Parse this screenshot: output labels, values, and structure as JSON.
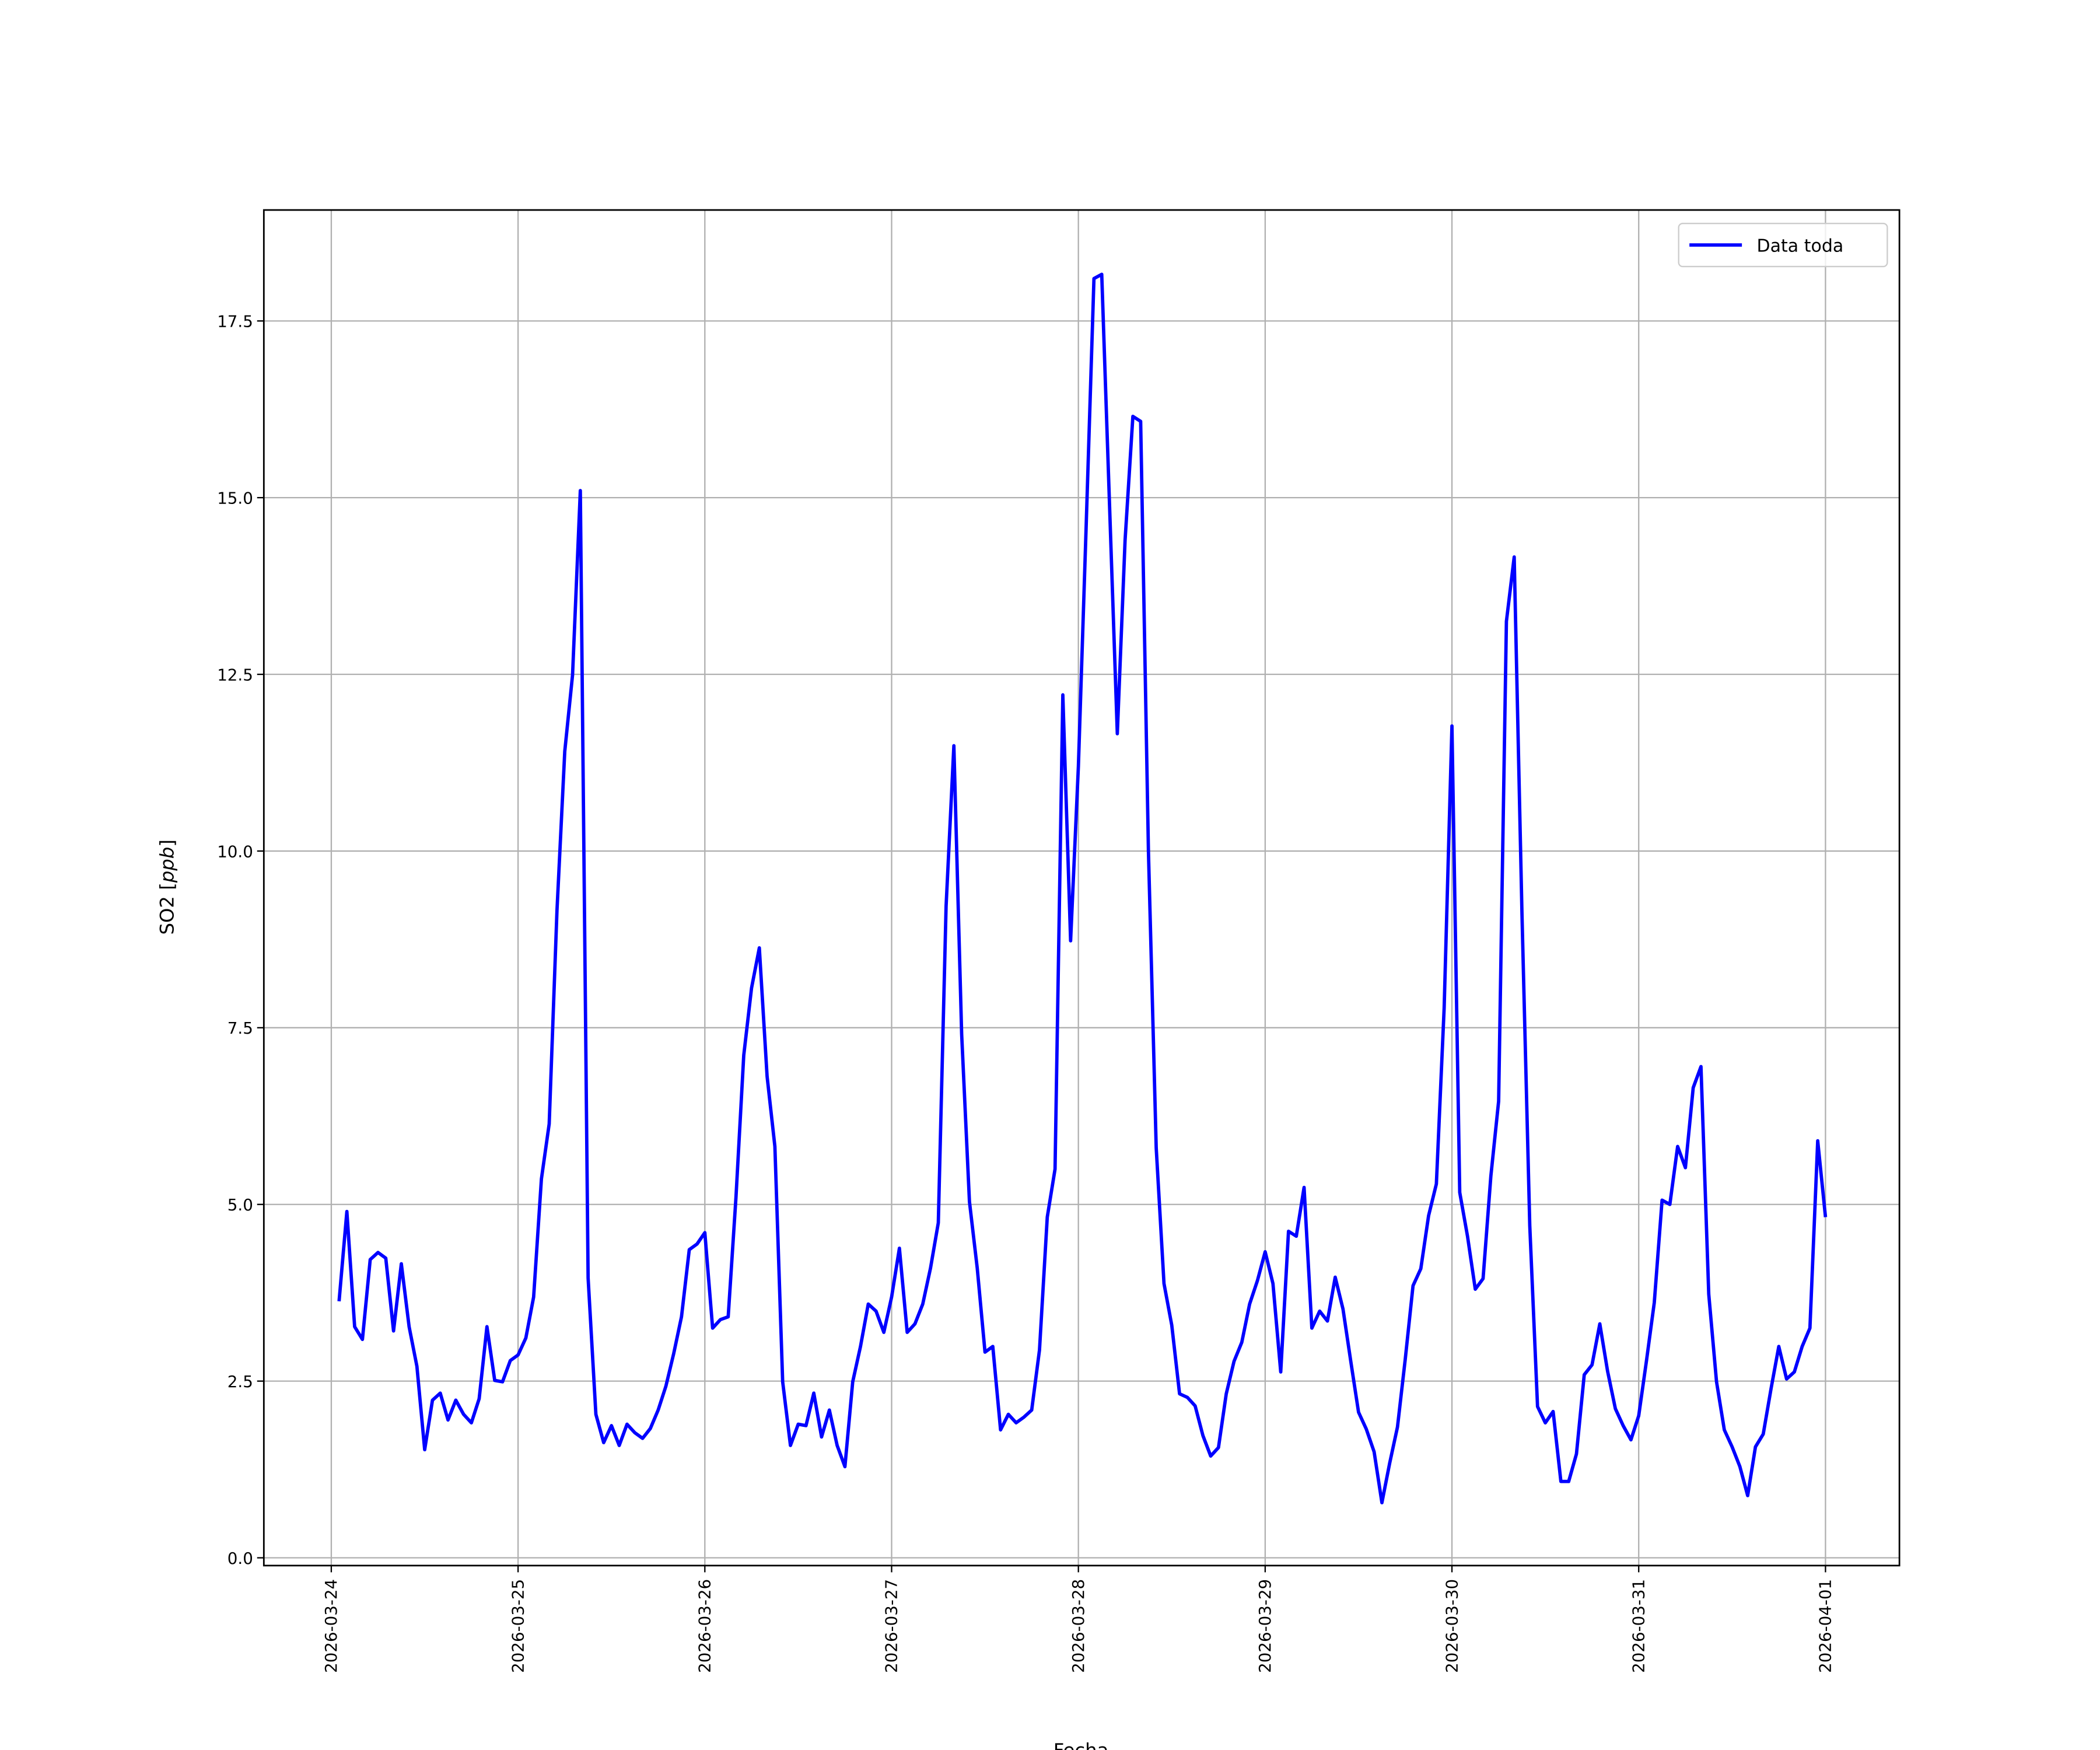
{
  "chart_data": {
    "type": "line",
    "title": "",
    "xlabel": "Fecha",
    "ylabel": "SO2 [ppb]",
    "ylabel_parts": {
      "plain": "SO2 [",
      "italic": "ppb",
      "close": "]"
    },
    "xlim": [
      "2026-03-23T15:20",
      "2026-04-01T09:30"
    ],
    "ylim": [
      -0.11,
      19.07
    ],
    "grid": true,
    "legend_position": "top-right",
    "xticks": [
      "2026-03-24",
      "2026-03-25",
      "2026-03-26",
      "2026-03-27",
      "2026-03-28",
      "2026-03-29",
      "2026-03-30",
      "2026-03-31",
      "2026-04-01"
    ],
    "yticks": [
      "0.0",
      "2.5",
      "5.0",
      "7.5",
      "10.0",
      "12.5",
      "15.0",
      "17.5"
    ],
    "series": [
      {
        "name": "Data toda",
        "color": "#0000ff",
        "x": [
          "2026-03-24T01:00",
          "2026-03-24T02:00",
          "2026-03-24T03:00",
          "2026-03-24T04:00",
          "2026-03-24T05:00",
          "2026-03-24T06:00",
          "2026-03-24T07:00",
          "2026-03-24T08:00",
          "2026-03-24T09:00",
          "2026-03-24T10:00",
          "2026-03-24T11:00",
          "2026-03-24T12:00",
          "2026-03-24T13:00",
          "2026-03-24T14:00",
          "2026-03-24T15:00",
          "2026-03-24T16:00",
          "2026-03-24T17:00",
          "2026-03-24T18:00",
          "2026-03-24T19:00",
          "2026-03-24T20:00",
          "2026-03-24T21:00",
          "2026-03-24T22:00",
          "2026-03-24T23:00",
          "2026-03-25T00:00",
          "2026-03-25T01:00",
          "2026-03-25T02:00",
          "2026-03-25T03:00",
          "2026-03-25T04:00",
          "2026-03-25T05:00",
          "2026-03-25T06:00",
          "2026-03-25T07:00",
          "2026-03-25T08:00",
          "2026-03-25T09:00",
          "2026-03-25T10:00",
          "2026-03-25T11:00",
          "2026-03-25T12:00",
          "2026-03-25T13:00",
          "2026-03-25T14:00",
          "2026-03-25T15:00",
          "2026-03-25T16:00",
          "2026-03-25T17:00",
          "2026-03-25T18:00",
          "2026-03-25T19:00",
          "2026-03-25T20:00",
          "2026-03-25T21:00",
          "2026-03-25T22:00",
          "2026-03-25T23:00",
          "2026-03-26T00:00",
          "2026-03-26T01:00",
          "2026-03-26T02:00",
          "2026-03-26T03:00",
          "2026-03-26T04:00",
          "2026-03-26T05:00",
          "2026-03-26T06:00",
          "2026-03-26T07:00",
          "2026-03-26T08:00",
          "2026-03-26T09:00",
          "2026-03-26T10:00",
          "2026-03-26T11:00",
          "2026-03-26T12:00",
          "2026-03-26T13:00",
          "2026-03-26T14:00",
          "2026-03-26T15:00",
          "2026-03-26T16:00",
          "2026-03-26T17:00",
          "2026-03-26T18:00",
          "2026-03-26T19:00",
          "2026-03-26T20:00",
          "2026-03-26T21:00",
          "2026-03-26T22:00",
          "2026-03-26T23:00",
          "2026-03-27T00:00",
          "2026-03-27T01:00",
          "2026-03-27T02:00",
          "2026-03-27T03:00",
          "2026-03-27T04:00",
          "2026-03-27T05:00",
          "2026-03-27T06:00",
          "2026-03-27T07:00",
          "2026-03-27T08:00",
          "2026-03-27T09:00",
          "2026-03-27T10:00",
          "2026-03-27T11:00",
          "2026-03-27T12:00",
          "2026-03-27T13:00",
          "2026-03-27T14:00",
          "2026-03-27T15:00",
          "2026-03-27T16:00",
          "2026-03-27T17:00",
          "2026-03-27T18:00",
          "2026-03-27T19:00",
          "2026-03-27T20:00",
          "2026-03-27T21:00",
          "2026-03-27T22:00",
          "2026-03-27T23:00",
          "2026-03-28T00:00",
          "2026-03-28T01:00",
          "2026-03-28T02:00",
          "2026-03-28T03:00",
          "2026-03-28T04:00",
          "2026-03-28T05:00",
          "2026-03-28T06:00",
          "2026-03-28T07:00",
          "2026-03-28T08:00",
          "2026-03-28T09:00",
          "2026-03-28T10:00",
          "2026-03-28T11:00",
          "2026-03-28T12:00",
          "2026-03-28T13:00",
          "2026-03-28T14:00",
          "2026-03-28T15:00",
          "2026-03-28T16:00",
          "2026-03-28T17:00",
          "2026-03-28T18:00",
          "2026-03-28T19:00",
          "2026-03-28T20:00",
          "2026-03-28T21:00",
          "2026-03-28T22:00",
          "2026-03-28T23:00",
          "2026-03-29T00:00",
          "2026-03-29T01:00",
          "2026-03-29T02:00",
          "2026-03-29T03:00",
          "2026-03-29T04:00",
          "2026-03-29T05:00",
          "2026-03-29T06:00",
          "2026-03-29T07:00",
          "2026-03-29T08:00",
          "2026-03-29T09:00",
          "2026-03-29T10:00",
          "2026-03-29T11:00",
          "2026-03-29T12:00",
          "2026-03-29T13:00",
          "2026-03-29T14:00",
          "2026-03-29T15:00",
          "2026-03-29T16:00",
          "2026-03-29T17:00",
          "2026-03-29T18:00",
          "2026-03-29T19:00",
          "2026-03-29T20:00",
          "2026-03-29T21:00",
          "2026-03-29T22:00",
          "2026-03-29T23:00",
          "2026-03-30T00:00",
          "2026-03-30T01:00",
          "2026-03-30T02:00",
          "2026-03-30T03:00",
          "2026-03-30T04:00",
          "2026-03-30T05:00",
          "2026-03-30T06:00",
          "2026-03-30T07:00",
          "2026-03-30T08:00",
          "2026-03-30T09:00",
          "2026-03-30T10:00",
          "2026-03-30T11:00",
          "2026-03-30T12:00",
          "2026-03-30T13:00",
          "2026-03-30T14:00",
          "2026-03-30T15:00",
          "2026-03-30T16:00",
          "2026-03-30T17:00",
          "2026-03-30T18:00",
          "2026-03-30T19:00",
          "2026-03-30T20:00",
          "2026-03-30T21:00",
          "2026-03-30T22:00",
          "2026-03-30T23:00",
          "2026-03-31T00:00",
          "2026-03-31T01:00",
          "2026-03-31T02:00",
          "2026-03-31T03:00",
          "2026-03-31T04:00",
          "2026-03-31T05:00",
          "2026-03-31T06:00",
          "2026-03-31T07:00",
          "2026-03-31T08:00",
          "2026-03-31T09:00",
          "2026-03-31T10:00",
          "2026-03-31T11:00",
          "2026-03-31T12:00",
          "2026-03-31T13:00",
          "2026-03-31T14:00",
          "2026-03-31T15:00",
          "2026-03-31T16:00",
          "2026-03-31T17:00",
          "2026-03-31T18:00",
          "2026-03-31T19:00",
          "2026-03-31T20:00",
          "2026-03-31T21:00",
          "2026-03-31T22:00",
          "2026-03-31T23:00",
          "2026-04-01T00:00"
        ],
        "y": [
          3.63,
          4.9,
          3.27,
          3.09,
          4.22,
          4.32,
          4.24,
          3.21,
          4.16,
          3.27,
          2.71,
          1.53,
          2.23,
          2.33,
          1.95,
          2.23,
          2.03,
          1.91,
          2.25,
          3.27,
          2.51,
          2.49,
          2.79,
          2.87,
          3.11,
          3.69,
          5.36,
          6.14,
          9.16,
          11.41,
          12.49,
          15.1,
          3.96,
          2.03,
          1.63,
          1.87,
          1.59,
          1.89,
          1.77,
          1.69,
          1.83,
          2.09,
          2.43,
          2.89,
          3.41,
          4.36,
          4.44,
          4.6,
          3.25,
          3.37,
          3.41,
          5.1,
          7.11,
          8.06,
          8.63,
          6.81,
          5.82,
          2.49,
          1.59,
          1.89,
          1.87,
          2.33,
          1.71,
          2.09,
          1.59,
          1.29,
          2.49,
          2.99,
          3.59,
          3.49,
          3.19,
          3.69,
          4.38,
          3.19,
          3.31,
          3.59,
          4.1,
          4.74,
          9.22,
          11.49,
          7.41,
          5.04,
          4.1,
          2.91,
          2.99,
          1.81,
          2.03,
          1.91,
          1.99,
          2.09,
          2.94,
          4.82,
          5.5,
          12.21,
          8.73,
          11.2,
          14.6,
          18.1,
          18.16,
          14.9,
          11.66,
          14.4,
          16.15,
          16.08,
          10.0,
          5.8,
          3.88,
          3.29,
          2.32,
          2.27,
          2.15,
          1.73,
          1.44,
          1.56,
          2.32,
          2.78,
          3.05,
          3.59,
          3.92,
          4.33,
          3.88,
          2.63,
          4.62,
          4.55,
          5.24,
          3.25,
          3.49,
          3.35,
          3.97,
          3.52,
          2.78,
          2.06,
          1.82,
          1.5,
          0.78,
          1.34,
          1.85,
          2.81,
          3.85,
          4.09,
          4.84,
          5.29,
          7.78,
          11.77,
          5.17,
          4.55,
          3.8,
          3.95,
          5.4,
          6.46,
          13.25,
          14.16,
          9.1,
          4.7,
          2.14,
          1.91,
          2.07,
          1.08,
          1.08,
          1.47,
          2.59,
          2.73,
          3.31,
          2.64,
          2.11,
          1.87,
          1.67,
          2.01,
          2.79,
          3.61,
          5.06,
          5.0,
          5.82,
          5.52,
          6.65,
          6.95,
          3.73,
          2.49,
          1.81,
          1.57,
          1.29,
          0.88,
          1.57,
          1.75,
          2.39,
          2.99,
          2.53,
          2.63,
          2.99,
          3.25,
          5.9,
          4.82
        ]
      }
    ]
  }
}
